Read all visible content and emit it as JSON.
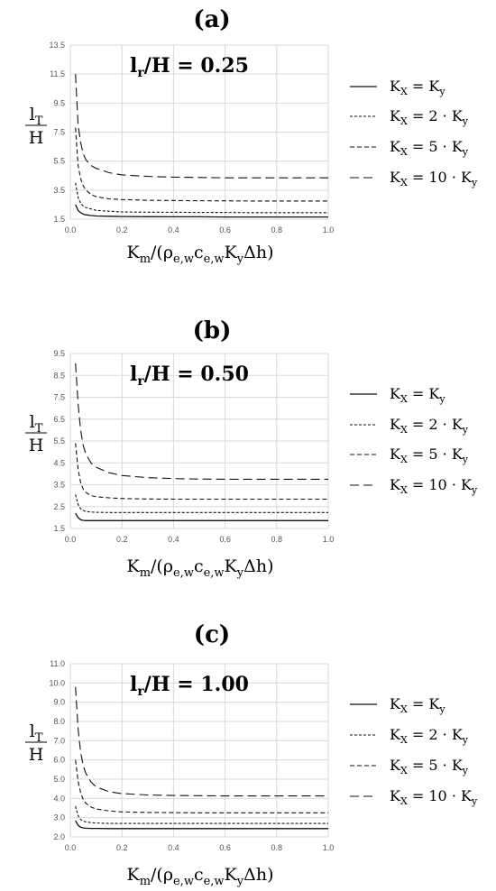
{
  "chart_data": [
    {
      "type": "line",
      "panel_label": "(a)",
      "title": "l_r/H = 0.25",
      "title_main": "l",
      "title_sub": "r",
      "title_rest": "/H = 0.25",
      "xlabel": "K_m/(ρ_e,w c_e,w K_y Δh)",
      "ylabel_num": "l_T",
      "ylabel_den": "H",
      "xlim": [
        0,
        1.0
      ],
      "ylim": [
        1.5,
        13.5
      ],
      "xticks": [
        "0.0",
        "0.2",
        "0.4",
        "0.6",
        "0.8",
        "1.0"
      ],
      "yticks": [
        "1.5",
        "3.5",
        "5.5",
        "7.5",
        "9.5",
        "11.5",
        "13.5"
      ],
      "x": [
        0.02,
        0.03,
        0.04,
        0.05,
        0.06,
        0.08,
        0.1,
        0.15,
        0.2,
        0.3,
        0.4,
        0.5,
        0.6,
        0.7,
        0.8,
        0.9,
        1.0
      ],
      "series": [
        {
          "name": "K_X = K_y",
          "values": [
            2.5,
            2.1,
            1.95,
            1.85,
            1.8,
            1.75,
            1.72,
            1.7,
            1.68,
            1.67,
            1.66,
            1.66,
            1.65,
            1.65,
            1.65,
            1.65,
            1.65
          ]
        },
        {
          "name": "K_X = 2 · K_y",
          "values": [
            4.0,
            3.0,
            2.6,
            2.4,
            2.3,
            2.2,
            2.1,
            2.05,
            2.0,
            1.98,
            1.97,
            1.96,
            1.96,
            1.95,
            1.95,
            1.95,
            1.95
          ]
        },
        {
          "name": "K_X = 5 · K_y",
          "values": [
            7.8,
            5.2,
            4.3,
            3.8,
            3.5,
            3.2,
            3.05,
            2.9,
            2.85,
            2.8,
            2.78,
            2.77,
            2.76,
            2.75,
            2.75,
            2.75,
            2.75
          ]
        },
        {
          "name": "K_X = 10 · K_y",
          "values": [
            11.5,
            8.0,
            6.8,
            6.0,
            5.6,
            5.2,
            5.0,
            4.7,
            4.55,
            4.45,
            4.4,
            4.37,
            4.35,
            4.35,
            4.35,
            4.35,
            4.35
          ]
        }
      ]
    },
    {
      "type": "line",
      "panel_label": "(b)",
      "title": "l_r/H = 0.50",
      "title_main": "l",
      "title_sub": "r",
      "title_rest": "/H = 0.50",
      "xlabel": "K_m/(ρ_e,w c_e,w K_y Δh)",
      "ylabel_num": "l_T",
      "ylabel_den": "H",
      "xlim": [
        0,
        1.0
      ],
      "ylim": [
        1.5,
        9.5
      ],
      "xticks": [
        "0.0",
        "0.2",
        "0.4",
        "0.6",
        "0.8",
        "1.0"
      ],
      "yticks": [
        "1.5",
        "2.5",
        "3.5",
        "4.5",
        "5.5",
        "6.5",
        "7.5",
        "8.5",
        "9.5"
      ],
      "x": [
        0.02,
        0.03,
        0.04,
        0.05,
        0.06,
        0.08,
        0.1,
        0.15,
        0.2,
        0.3,
        0.4,
        0.5,
        0.6,
        0.7,
        0.8,
        0.9,
        1.0
      ],
      "series": [
        {
          "name": "K_X = K_y",
          "values": [
            2.2,
            2.0,
            1.9,
            1.87,
            1.86,
            1.86,
            1.86,
            1.86,
            1.86,
            1.86,
            1.86,
            1.86,
            1.86,
            1.86,
            1.86,
            1.86,
            1.86
          ]
        },
        {
          "name": "K_X = 2 · K_y",
          "values": [
            3.05,
            2.6,
            2.4,
            2.32,
            2.28,
            2.25,
            2.24,
            2.23,
            2.23,
            2.23,
            2.23,
            2.23,
            2.23,
            2.23,
            2.23,
            2.23,
            2.23
          ]
        },
        {
          "name": "K_X = 5 · K_y",
          "values": [
            5.4,
            4.2,
            3.6,
            3.3,
            3.15,
            3.0,
            2.95,
            2.9,
            2.87,
            2.85,
            2.84,
            2.84,
            2.84,
            2.84,
            2.84,
            2.84,
            2.84
          ]
        },
        {
          "name": "K_X = 10 · K_y",
          "values": [
            9.05,
            7.2,
            6.0,
            5.3,
            4.9,
            4.5,
            4.3,
            4.05,
            3.92,
            3.82,
            3.78,
            3.76,
            3.75,
            3.75,
            3.75,
            3.75,
            3.75
          ]
        }
      ]
    },
    {
      "type": "line",
      "panel_label": "(c)",
      "title": "l_r/H = 1.00",
      "title_main": "l",
      "title_sub": "r",
      "title_rest": "/H = 1.00",
      "xlabel": "K_m/(ρ_e,w c_e,w K_y Δh)",
      "ylabel_num": "l_T",
      "ylabel_den": "H",
      "xlim": [
        0,
        1.0
      ],
      "ylim": [
        2.0,
        11.0
      ],
      "xticks": [
        "0.0",
        "0.2",
        "0.4",
        "0.6",
        "0.8",
        "1.0"
      ],
      "yticks": [
        "2.0",
        "3.0",
        "4.0",
        "5.0",
        "6.0",
        "7.0",
        "8.0",
        "9.0",
        "10.0",
        "11.0"
      ],
      "x": [
        0.02,
        0.03,
        0.04,
        0.05,
        0.06,
        0.08,
        0.1,
        0.15,
        0.2,
        0.3,
        0.4,
        0.5,
        0.6,
        0.7,
        0.8,
        0.9,
        1.0
      ],
      "series": [
        {
          "name": "K_X = K_y",
          "values": [
            2.85,
            2.6,
            2.5,
            2.47,
            2.45,
            2.44,
            2.44,
            2.43,
            2.43,
            2.43,
            2.43,
            2.43,
            2.43,
            2.43,
            2.43,
            2.43,
            2.43
          ]
        },
        {
          "name": "K_X = 2 · K_y",
          "values": [
            3.6,
            3.1,
            2.9,
            2.82,
            2.78,
            2.74,
            2.72,
            2.7,
            2.7,
            2.7,
            2.7,
            2.7,
            2.7,
            2.7,
            2.7,
            2.7,
            2.7
          ]
        },
        {
          "name": "K_X = 5 · K_y",
          "values": [
            6.0,
            4.9,
            4.3,
            3.95,
            3.75,
            3.55,
            3.45,
            3.35,
            3.3,
            3.27,
            3.26,
            3.25,
            3.25,
            3.25,
            3.25,
            3.25,
            3.25
          ]
        },
        {
          "name": "K_X = 10 · K_y",
          "values": [
            9.8,
            7.6,
            6.4,
            5.7,
            5.3,
            4.85,
            4.6,
            4.35,
            4.25,
            4.18,
            4.15,
            4.14,
            4.13,
            4.13,
            4.13,
            4.13,
            4.13
          ]
        }
      ]
    }
  ],
  "legend": [
    {
      "pre": "K",
      "sub1": "X",
      "mid": " = K",
      "sub2": "y",
      "post": ""
    },
    {
      "pre": "K",
      "sub1": "X",
      "mid": " = 2 · K",
      "sub2": "y",
      "post": ""
    },
    {
      "pre": "K",
      "sub1": "X",
      "mid": " = 5 · K",
      "sub2": "y",
      "post": ""
    },
    {
      "pre": "K",
      "sub1": "X",
      "mid": " = 10 · K",
      "sub2": "y",
      "post": ""
    }
  ],
  "xlabel_parts": {
    "k": "K",
    "m": "m",
    "open": "/(ρ",
    "ew1": "e,w",
    "c": "c",
    "ew2": "e,w",
    "K2": "K",
    "y": "y",
    "end": "Δh)"
  }
}
